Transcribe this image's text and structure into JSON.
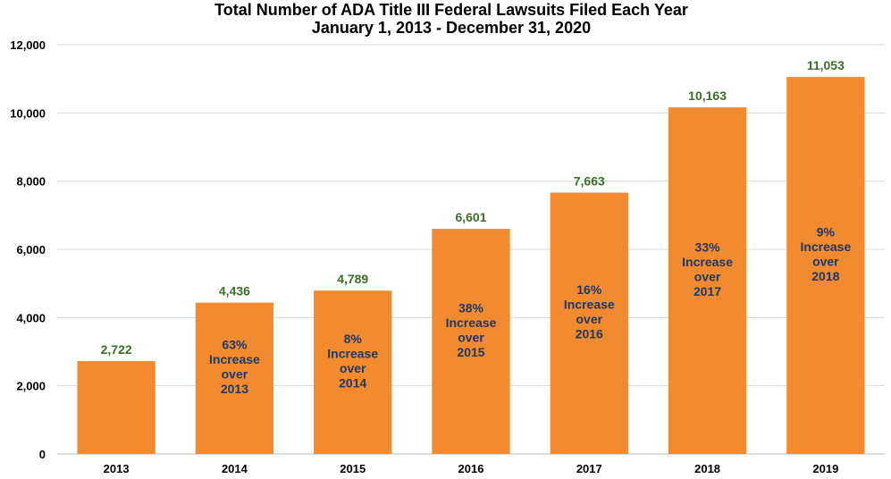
{
  "chart_data": {
    "type": "bar",
    "title": "Total Number of ADA Title III Federal Lawsuits Filed Each Year",
    "subtitle": "January 1, 2013 - December 31, 2020",
    "xlabel": "",
    "ylabel": "",
    "categories": [
      "2013",
      "2014",
      "2015",
      "2016",
      "2017",
      "2018",
      "2019"
    ],
    "values": [
      2722,
      4436,
      4789,
      6601,
      7663,
      10163,
      11053
    ],
    "value_labels": [
      "2,722",
      "4,436",
      "4,789",
      "6,601",
      "7,663",
      "10,163",
      "11,053"
    ],
    "annotations": [
      [],
      [
        "63%",
        "Increase",
        "over",
        "2013"
      ],
      [
        "8%",
        "Increase",
        "over",
        "2014"
      ],
      [
        "38%",
        "Increase",
        "over",
        "2015"
      ],
      [
        "16%",
        "Increase",
        "over",
        "2016"
      ],
      [
        "33%",
        "Increase",
        "over",
        "2017"
      ],
      [
        "9%",
        "Increase",
        "over",
        "2018"
      ]
    ],
    "ylim": [
      0,
      12000
    ],
    "yticks": [
      0,
      2000,
      4000,
      6000,
      8000,
      10000,
      12000
    ],
    "ytick_labels": [
      "0",
      "2,000",
      "4,000",
      "6,000",
      "8,000",
      "10,000",
      "12,000"
    ],
    "grid": true,
    "legend": "none",
    "colors": {
      "bar": "#f28a30",
      "value_label": "#3c6e2a",
      "annotation": "#1f3864",
      "grid": "#d0dce6"
    }
  }
}
